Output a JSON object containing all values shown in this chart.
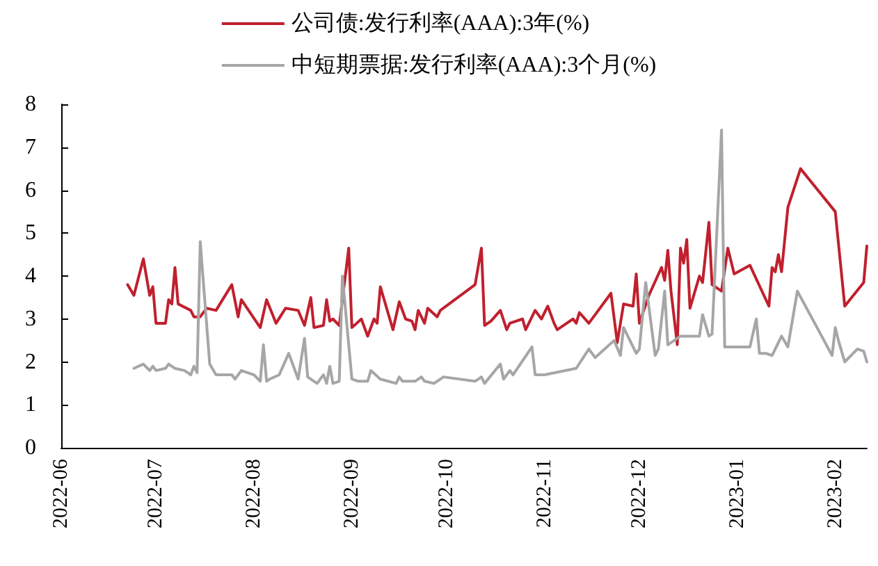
{
  "chart_data": {
    "type": "line",
    "xlim": [
      "2022-06-01",
      "2023-02-11"
    ],
    "xticks": [
      {
        "value": "2022-06-01",
        "label": "2022-06"
      },
      {
        "value": "2022-07-01",
        "label": "2022-07"
      },
      {
        "value": "2022-08-01",
        "label": "2022-08"
      },
      {
        "value": "2022-09-01",
        "label": "2022-09"
      },
      {
        "value": "2022-10-01",
        "label": "2022-10"
      },
      {
        "value": "2022-11-01",
        "label": "2022-11"
      },
      {
        "value": "2022-12-01",
        "label": "2022-12"
      },
      {
        "value": "2023-01-01",
        "label": "2023-01"
      },
      {
        "value": "2023-02-01",
        "label": "2023-02"
      }
    ],
    "ylim": [
      0,
      8
    ],
    "yticks": [
      0,
      1,
      2,
      3,
      4,
      5,
      6,
      7,
      8
    ],
    "grid": false,
    "legend": "top",
    "marker": "none",
    "line_style": "solid",
    "series": [
      {
        "name": "公司债:发行利率(AAA):3年(%)",
        "color": "#c0202e",
        "x": [
          "2022-06-22",
          "2022-06-24",
          "2022-06-27",
          "2022-06-29",
          "2022-06-30",
          "2022-07-01",
          "2022-07-04",
          "2022-07-05",
          "2022-07-06",
          "2022-07-07",
          "2022-07-08",
          "2022-07-12",
          "2022-07-13",
          "2022-07-15",
          "2022-07-17",
          "2022-07-20",
          "2022-07-25",
          "2022-07-27",
          "2022-07-28",
          "2022-08-03",
          "2022-08-05",
          "2022-08-08",
          "2022-08-11",
          "2022-08-15",
          "2022-08-17",
          "2022-08-19",
          "2022-08-20",
          "2022-08-23",
          "2022-08-24",
          "2022-08-25",
          "2022-08-26",
          "2022-08-28",
          "2022-08-31",
          "2022-09-01",
          "2022-09-04",
          "2022-09-06",
          "2022-09-08",
          "2022-09-09",
          "2022-09-10",
          "2022-09-13",
          "2022-09-14",
          "2022-09-16",
          "2022-09-18",
          "2022-09-20",
          "2022-09-21",
          "2022-09-22",
          "2022-09-24",
          "2022-09-25",
          "2022-09-28",
          "2022-09-29",
          "2022-10-10",
          "2022-10-12",
          "2022-10-13",
          "2022-10-15",
          "2022-10-18",
          "2022-10-20",
          "2022-10-21",
          "2022-10-25",
          "2022-10-26",
          "2022-10-29",
          "2022-10-31",
          "2022-11-02",
          "2022-11-04",
          "2022-11-05",
          "2022-11-08",
          "2022-11-10",
          "2022-11-11",
          "2022-11-12",
          "2022-11-15",
          "2022-11-22",
          "2022-11-24",
          "2022-11-26",
          "2022-11-29",
          "2022-11-30",
          "2022-12-01",
          "2022-12-04",
          "2022-12-08",
          "2022-12-09",
          "2022-12-10",
          "2022-12-11",
          "2022-12-13",
          "2022-12-14",
          "2022-12-15",
          "2022-12-16",
          "2022-12-17",
          "2022-12-20",
          "2022-12-21",
          "2022-12-23",
          "2022-12-24",
          "2022-12-27",
          "2022-12-29",
          "2022-12-31",
          "2023-01-05",
          "2023-01-11",
          "2023-01-12",
          "2023-01-13",
          "2023-01-14",
          "2023-01-15",
          "2023-01-17",
          "2023-01-21",
          "2023-02-01",
          "2023-02-04",
          "2023-02-10",
          "2023-02-11"
        ],
        "values": [
          3.8,
          3.55,
          4.4,
          3.55,
          3.75,
          2.9,
          2.9,
          3.45,
          3.35,
          4.2,
          3.35,
          3.2,
          3.05,
          3.05,
          3.25,
          3.2,
          3.8,
          3.05,
          3.45,
          2.8,
          3.45,
          2.9,
          3.25,
          3.2,
          2.85,
          3.5,
          2.8,
          2.85,
          3.45,
          2.95,
          3.0,
          2.85,
          4.65,
          2.8,
          3.0,
          2.6,
          3.0,
          2.9,
          3.75,
          3.0,
          2.75,
          3.4,
          3.0,
          2.95,
          2.75,
          3.2,
          2.9,
          3.25,
          3.05,
          3.2,
          3.8,
          4.65,
          2.85,
          2.95,
          3.2,
          2.75,
          2.9,
          3.0,
          2.75,
          3.2,
          3.0,
          3.3,
          2.9,
          2.75,
          2.9,
          3.0,
          2.9,
          3.15,
          2.9,
          3.6,
          2.45,
          3.35,
          3.3,
          4.05,
          2.9,
          3.55,
          4.2,
          3.9,
          4.6,
          3.65,
          2.4,
          4.65,
          4.3,
          4.85,
          3.25,
          4.0,
          3.85,
          5.25,
          3.8,
          3.65,
          4.65,
          4.05,
          4.25,
          3.3,
          4.2,
          4.1,
          4.5,
          4.1,
          5.6,
          6.5,
          5.5,
          3.3,
          3.85,
          4.7
        ]
      },
      {
        "name": "中短期票据:发行利率(AAA):3个月(%)",
        "color": "#a6a6a6",
        "x": [
          "2022-06-24",
          "2022-06-27",
          "2022-06-29",
          "2022-06-30",
          "2022-07-01",
          "2022-07-04",
          "2022-07-05",
          "2022-07-07",
          "2022-07-10",
          "2022-07-12",
          "2022-07-13",
          "2022-07-14",
          "2022-07-15",
          "2022-07-18",
          "2022-07-20",
          "2022-07-22",
          "2022-07-25",
          "2022-07-26",
          "2022-07-28",
          "2022-08-01",
          "2022-08-03",
          "2022-08-04",
          "2022-08-05",
          "2022-08-06",
          "2022-08-09",
          "2022-08-12",
          "2022-08-15",
          "2022-08-17",
          "2022-08-18",
          "2022-08-21",
          "2022-08-23",
          "2022-08-24",
          "2022-08-25",
          "2022-08-26",
          "2022-08-28",
          "2022-08-29",
          "2022-09-01",
          "2022-09-03",
          "2022-09-06",
          "2022-09-07",
          "2022-09-10",
          "2022-09-15",
          "2022-09-16",
          "2022-09-17",
          "2022-09-21",
          "2022-09-23",
          "2022-09-24",
          "2022-09-27",
          "2022-09-30",
          "2022-10-10",
          "2022-10-12",
          "2022-10-13",
          "2022-10-18",
          "2022-10-19",
          "2022-10-21",
          "2022-10-22",
          "2022-10-28",
          "2022-10-29",
          "2022-11-01",
          "2022-11-11",
          "2022-11-15",
          "2022-11-17",
          "2022-11-23",
          "2022-11-25",
          "2022-11-26",
          "2022-11-30",
          "2022-12-01",
          "2022-12-03",
          "2022-12-06",
          "2022-12-07",
          "2022-12-09",
          "2022-12-10",
          "2022-12-12",
          "2022-12-14",
          "2022-12-20",
          "2022-12-21",
          "2022-12-23",
          "2022-12-24",
          "2022-12-27",
          "2022-12-28",
          "2023-01-05",
          "2023-01-07",
          "2023-01-08",
          "2023-01-10",
          "2023-01-12",
          "2023-01-15",
          "2023-01-17",
          "2023-01-20",
          "2023-01-31",
          "2023-02-01",
          "2023-02-02",
          "2023-02-04",
          "2023-02-08",
          "2023-02-10",
          "2023-02-11"
        ],
        "values": [
          1.85,
          1.95,
          1.8,
          1.9,
          1.8,
          1.85,
          1.95,
          1.85,
          1.8,
          1.7,
          1.9,
          1.75,
          4.8,
          1.95,
          1.7,
          1.7,
          1.7,
          1.6,
          1.8,
          1.7,
          1.55,
          2.4,
          1.55,
          1.6,
          1.7,
          2.2,
          1.6,
          2.55,
          1.65,
          1.5,
          1.7,
          1.5,
          1.9,
          1.5,
          1.55,
          4.0,
          1.6,
          1.55,
          1.55,
          1.8,
          1.6,
          1.5,
          1.65,
          1.55,
          1.55,
          1.65,
          1.55,
          1.5,
          1.65,
          1.55,
          1.65,
          1.5,
          1.95,
          1.6,
          1.8,
          1.7,
          2.35,
          1.7,
          1.7,
          1.85,
          2.3,
          2.1,
          2.5,
          2.15,
          2.8,
          2.2,
          2.3,
          3.85,
          2.15,
          2.3,
          3.65,
          2.4,
          2.5,
          2.6,
          2.6,
          3.1,
          2.6,
          2.65,
          7.4,
          2.35,
          2.35,
          3.0,
          2.2,
          2.2,
          2.15,
          2.6,
          2.35,
          3.65,
          2.15,
          2.8,
          2.5,
          2.0,
          2.3,
          2.25,
          2.0
        ]
      }
    ]
  }
}
